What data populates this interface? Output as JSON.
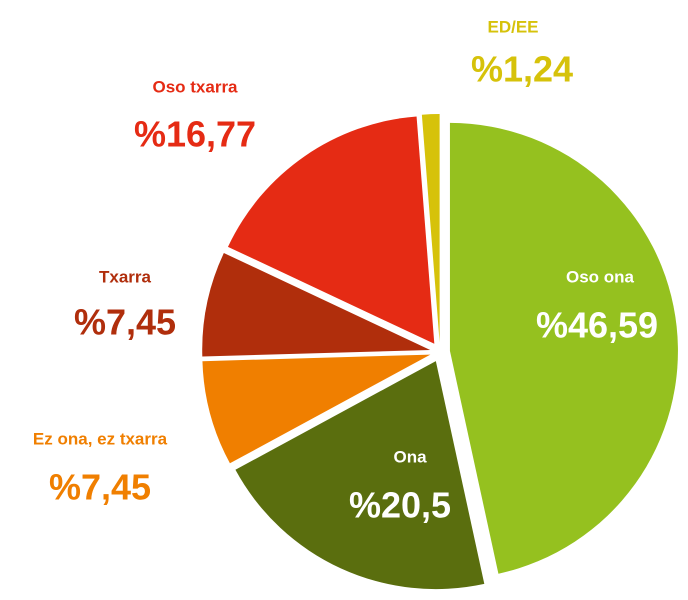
{
  "chart_data": {
    "type": "pie",
    "categories": [
      "Oso ona",
      "Ona",
      "Ez ona, ez txarra",
      "Txarra",
      "Oso txarra",
      "ED/EE"
    ],
    "values": [
      46.59,
      20.5,
      7.45,
      7.45,
      16.77,
      1.24
    ],
    "value_labels": [
      "%46,59",
      "%20,5",
      "%7,45",
      "%7,45",
      "%16,77",
      "%1,24"
    ],
    "colors": [
      "#95c11f",
      "#5a6e0e",
      "#f07f00",
      "#b02e0c",
      "#e52b14",
      "#d6c20a"
    ],
    "label_colors": [
      "#ffffff",
      "#ffffff",
      "#f07f00",
      "#b02e0c",
      "#e52b14",
      "#d6c20a"
    ]
  }
}
